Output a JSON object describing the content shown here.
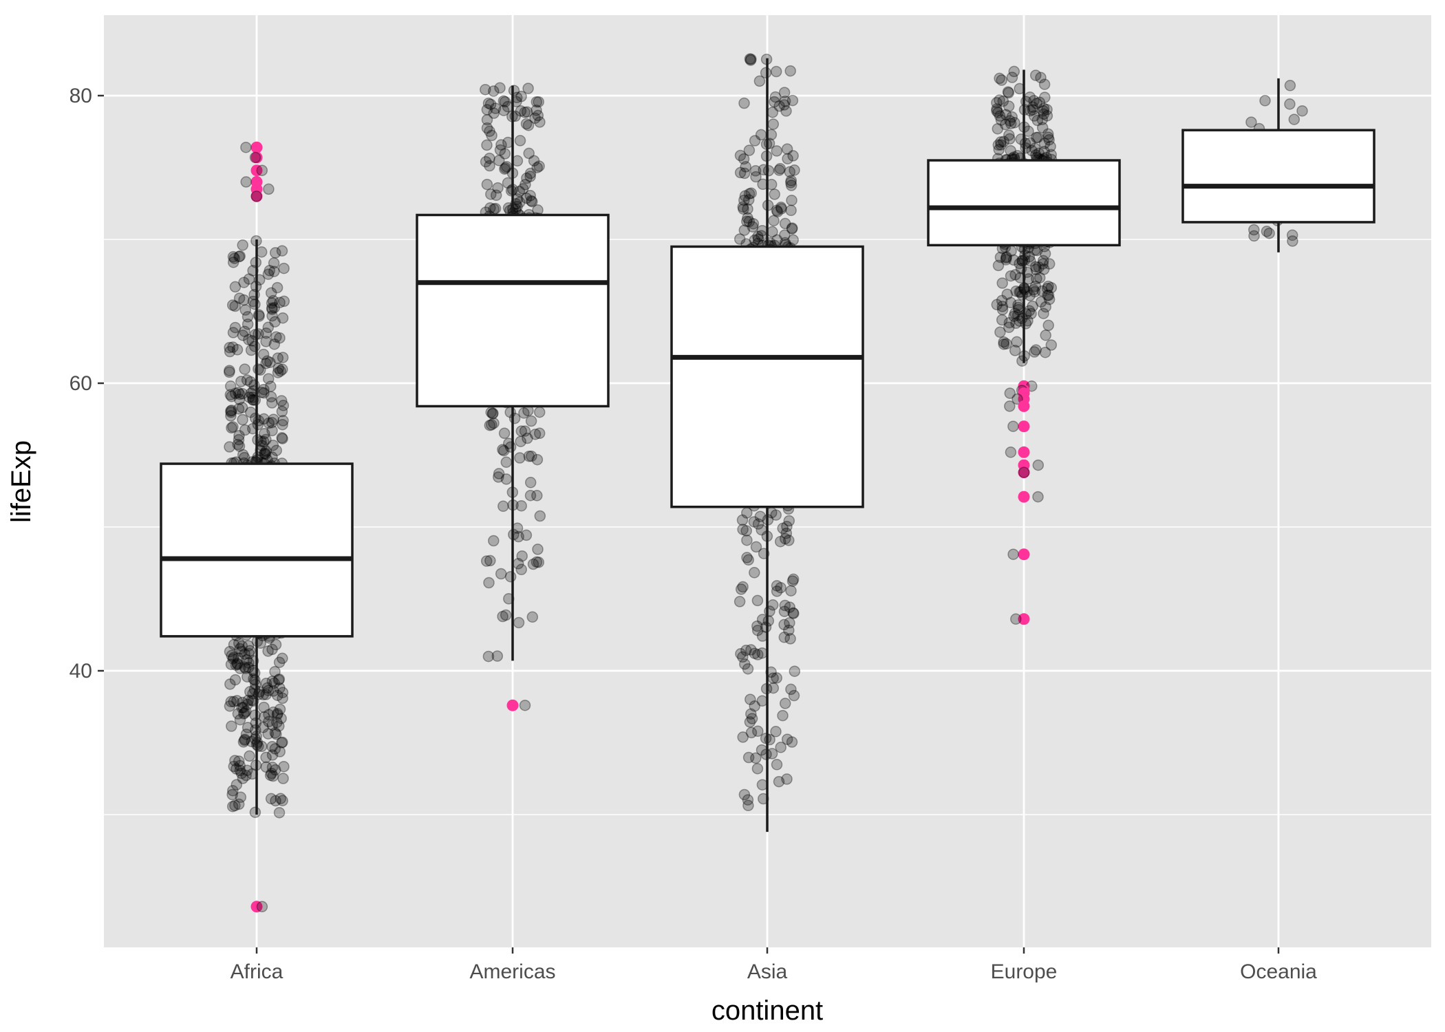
{
  "chart_data": {
    "type": "box",
    "title": "",
    "xlabel": "continent",
    "ylabel": "lifeExp",
    "ylim": [
      21.5,
      85.5
    ],
    "y_ticks": [
      40,
      60,
      80
    ],
    "y_minor_ticks": [
      30,
      50,
      70
    ],
    "grid": true,
    "legend": "none",
    "categories": [
      "Africa",
      "Americas",
      "Asia",
      "Europe",
      "Oceania"
    ],
    "boxes": [
      {
        "category": "Africa",
        "whisker_low": 30.0,
        "q1": 42.4,
        "median": 47.8,
        "q3": 54.4,
        "whisker_high": 70.0
      },
      {
        "category": "Americas",
        "whisker_low": 40.7,
        "q1": 58.4,
        "median": 67.0,
        "q3": 71.7,
        "whisker_high": 80.7
      },
      {
        "category": "Asia",
        "whisker_low": 28.8,
        "q1": 51.4,
        "median": 61.8,
        "q3": 69.5,
        "whisker_high": 82.6
      },
      {
        "category": "Europe",
        "whisker_low": 61.4,
        "q1": 69.6,
        "median": 72.2,
        "q3": 75.5,
        "whisker_high": 81.8
      },
      {
        "category": "Oceania",
        "whisker_low": 69.1,
        "q1": 71.2,
        "median": 73.7,
        "q3": 77.6,
        "whisker_high": 81.2
      }
    ],
    "outliers": [
      {
        "category": "Africa",
        "values": [
          76.4,
          75.7,
          74.8,
          74.0,
          73.5,
          73.0,
          23.6
        ]
      },
      {
        "category": "Americas",
        "values": [
          37.6
        ]
      },
      {
        "category": "Europe",
        "values": [
          59.8,
          59.5,
          59.3,
          58.9,
          58.4,
          57.0,
          55.2,
          54.3,
          53.8,
          52.1,
          48.1,
          43.6
        ]
      }
    ],
    "jitter_counts": {
      "Africa": 624,
      "Americas": 300,
      "Asia": 396,
      "Europe": 360,
      "Oceania": 24
    },
    "colors": {
      "panel": "#e5e5e5",
      "grid": "#ffffff",
      "box_fill": "#ffffff",
      "box_stroke": "#1a1a1a",
      "points": "#000000",
      "outliers": "#ff3399"
    }
  }
}
